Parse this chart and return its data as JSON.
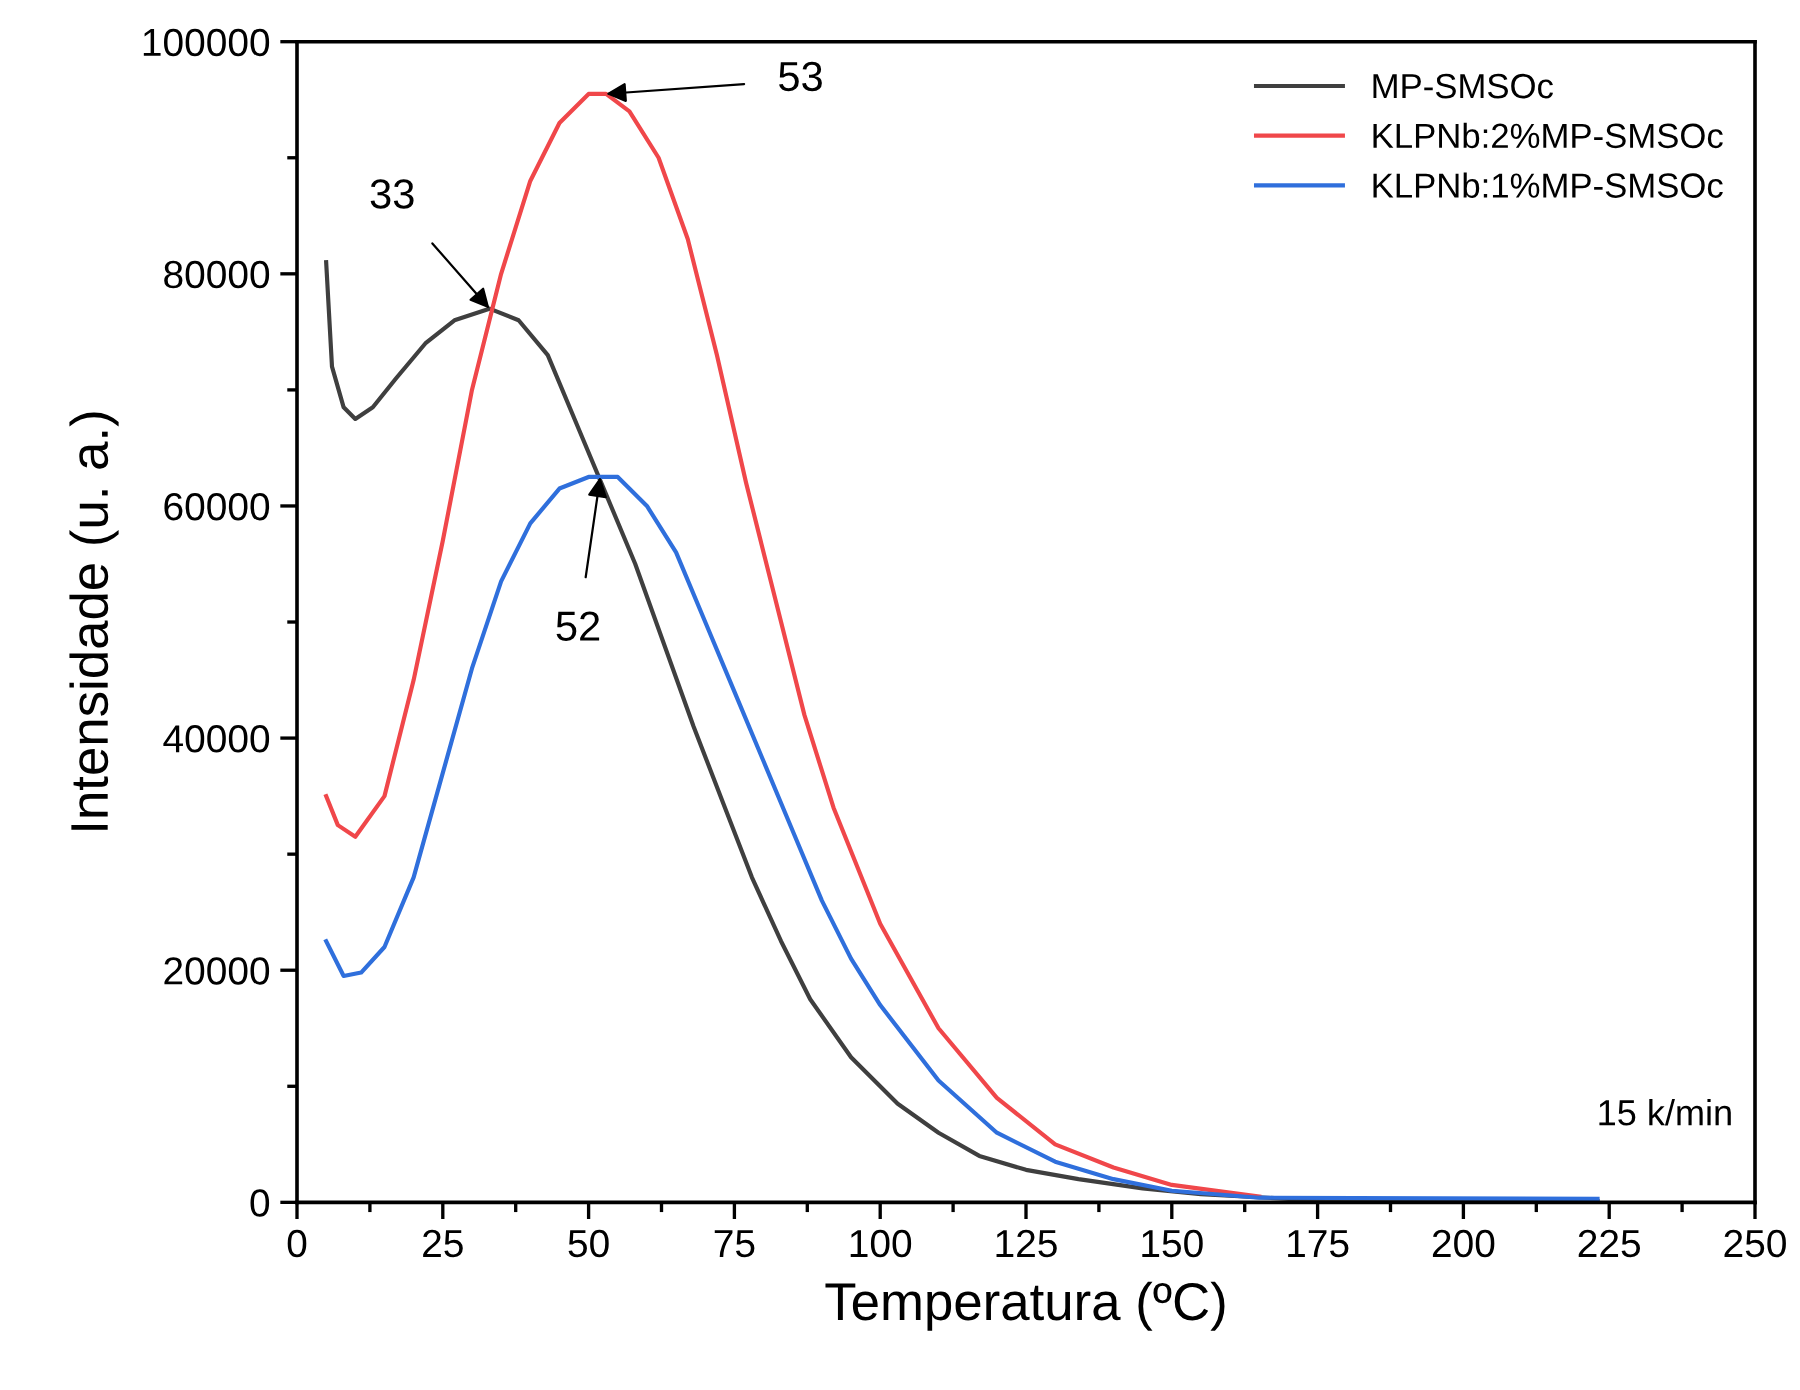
{
  "chart_data": {
    "type": "line",
    "xlabel": "Temperatura (ºC)",
    "ylabel": "Intensidade (u. a.)",
    "xlim": [
      0,
      250
    ],
    "xticks": [
      0,
      25,
      50,
      75,
      100,
      125,
      150,
      175,
      200,
      225,
      250
    ],
    "ylim": [
      0,
      100000
    ],
    "yticks": [
      0,
      20000,
      40000,
      60000,
      80000,
      100000
    ],
    "grid": false,
    "legend": "top right",
    "marker": "none",
    "line_style": "solid",
    "series": [
      {
        "name": "MP-SMSOc",
        "color": "#3f3f3f",
        "x": [
          5,
          6,
          8,
          10,
          13,
          17,
          22,
          27,
          33,
          38,
          43,
          48,
          53,
          58,
          63,
          68,
          73,
          78,
          83,
          88,
          95,
          103,
          110,
          117,
          125,
          134,
          145,
          155,
          170,
          200,
          223
        ],
        "values": [
          81000,
          72000,
          68500,
          67500,
          68500,
          71000,
          74000,
          76000,
          77000,
          76000,
          73000,
          67000,
          61000,
          55000,
          48000,
          41000,
          34500,
          28000,
          22500,
          17500,
          12500,
          8500,
          6000,
          4000,
          2800,
          2000,
          1200,
          700,
          300,
          200,
          100
        ]
      },
      {
        "name": "KLPNb:2%MP-SMSOc",
        "color": "#f0474a",
        "x": [
          5,
          7,
          10,
          15,
          20,
          25,
          30,
          35,
          40,
          45,
          50,
          53,
          57,
          62,
          67,
          72,
          77,
          82,
          87,
          92,
          100,
          110,
          120,
          130,
          140,
          150,
          165
        ],
        "values": [
          35000,
          32500,
          31500,
          35000,
          45000,
          57000,
          70000,
          80000,
          88000,
          93000,
          95500,
          95500,
          94000,
          90000,
          83000,
          73000,
          62000,
          52000,
          42000,
          34000,
          24000,
          15000,
          9000,
          5000,
          3000,
          1500,
          500
        ]
      },
      {
        "name": "KLPNb:1%MP-SMSOc",
        "color": "#2f6fdc",
        "x": [
          5,
          8,
          11,
          15,
          20,
          25,
          30,
          35,
          40,
          45,
          50,
          55,
          60,
          65,
          70,
          75,
          80,
          85,
          90,
          95,
          100,
          110,
          120,
          130,
          140,
          150,
          165,
          223
        ],
        "values": [
          22500,
          19500,
          19800,
          22000,
          28000,
          37000,
          46000,
          53500,
          58500,
          61500,
          62500,
          62500,
          60000,
          56000,
          50000,
          44000,
          38000,
          32000,
          26000,
          21000,
          17000,
          10500,
          6000,
          3500,
          2000,
          1000,
          400,
          300
        ]
      }
    ],
    "annotations": [
      {
        "text": "33",
        "x": 33,
        "y": 77000
      },
      {
        "text": "53",
        "x": 53,
        "y": 95500
      },
      {
        "text": "52",
        "x": 52,
        "y": 62500
      },
      "15 k/min"
    ]
  }
}
